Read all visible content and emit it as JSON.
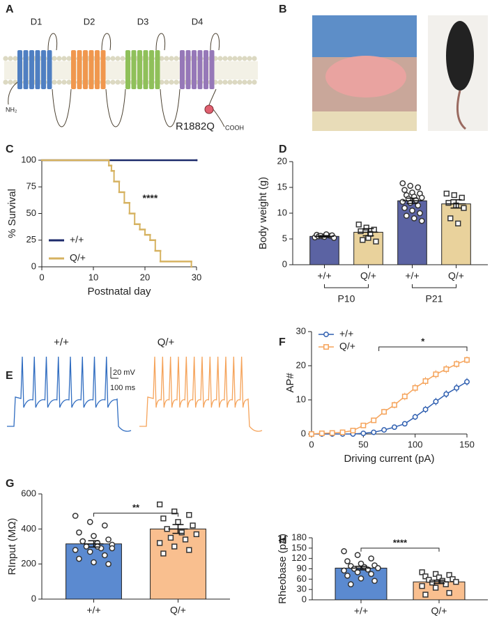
{
  "panel_a": {
    "panel": "A",
    "domains": [
      "D1",
      "D2",
      "D3",
      "D4"
    ],
    "n_terminus": "NH₂",
    "mutation": "R1882Q",
    "c_terminus": "COOH"
  },
  "panel_b": {
    "panel": "B"
  },
  "panel_e": {
    "panel": "E",
    "traces": [
      "+/+",
      "Q/+"
    ],
    "scale_voltage": "20 mV",
    "scale_time": "100 ms"
  },
  "chart_data": [
    {
      "panel": "C",
      "type": "line",
      "step": true,
      "xlabel": "Postnatal day",
      "ylabel": "% Survival",
      "xlim": [
        0,
        30
      ],
      "xticks": [
        0,
        10,
        20,
        30
      ],
      "ylim": [
        0,
        100
      ],
      "yticks": [
        0,
        25,
        50,
        75,
        100
      ],
      "legend": "lower left",
      "annotation": {
        "text": "****",
        "x": 21,
        "y": 64
      },
      "series": [
        {
          "name": "+/+",
          "color": "#1c2a6b",
          "x": [
            0,
            30
          ],
          "values": [
            100,
            100
          ]
        },
        {
          "name": "Q/+",
          "color": "#d6b260",
          "x": [
            0,
            13,
            13.5,
            14,
            15,
            16,
            17,
            18,
            19,
            20,
            21,
            22,
            23,
            29
          ],
          "values": [
            100,
            95,
            90,
            80,
            70,
            60,
            50,
            40,
            35,
            30,
            25,
            15,
            5,
            0
          ]
        }
      ]
    },
    {
      "panel": "D",
      "type": "bar",
      "ylabel": "Body weight (g)",
      "categories": [
        "+/+",
        "Q/+",
        "+/+",
        "Q/+"
      ],
      "groups": [
        "P10",
        "P21"
      ],
      "values": [
        5.5,
        6.3,
        12.4,
        11.8
      ],
      "errors": [
        0.15,
        0.7,
        0.5,
        0.8
      ],
      "colors": [
        "#5b63a3",
        "#e9d29c",
        "#5b63a3",
        "#e9d29c"
      ],
      "markers": [
        "circle",
        "square",
        "circle",
        "square"
      ],
      "points": [
        [
          5.3,
          5.5,
          5.6,
          5.8,
          5.4,
          5.7,
          5.5,
          5.9,
          5.2,
          5.6
        ],
        [
          7.8,
          7.2,
          6.8,
          6.5,
          5.2,
          4.5,
          4.8,
          6.0
        ],
        [
          15.8,
          15.3,
          15,
          14.5,
          14,
          13.8,
          13.5,
          13.2,
          13,
          12.8,
          12.5,
          12.2,
          12,
          11.5,
          11,
          10.5,
          10,
          9.5,
          9,
          8.5
        ],
        [
          13.8,
          13.5,
          13,
          12,
          11.5,
          11,
          9,
          8
        ]
      ],
      "ylim": [
        0,
        20
      ],
      "yticks": [
        0,
        5,
        10,
        15,
        20
      ]
    },
    {
      "panel": "F",
      "type": "line",
      "xlabel": "Driving current (pA)",
      "ylabel": "AP#",
      "x": [
        0,
        10,
        20,
        30,
        40,
        50,
        60,
        70,
        80,
        90,
        100,
        110,
        120,
        130,
        140,
        150
      ],
      "xlim": [
        0,
        150
      ],
      "xticks": [
        0,
        50,
        100,
        150
      ],
      "ylim": [
        0,
        30
      ],
      "yticks": [
        0,
        10,
        20,
        30
      ],
      "legend": "upper left",
      "annotation": {
        "text": "*",
        "x": [
          65,
          150
        ],
        "y": 25.5
      },
      "series": [
        {
          "name": "+/+",
          "color": "#2f5fb0",
          "marker": "circle",
          "values": [
            0,
            0,
            0,
            0,
            0,
            0.2,
            0.5,
            1.2,
            2,
            3,
            5,
            7.2,
            9.5,
            11.7,
            13.5,
            15.3
          ],
          "errors": [
            0,
            0,
            0,
            0,
            0,
            0.1,
            0.2,
            0.4,
            0.6,
            0.7,
            0.9,
            1,
            1.1,
            1.1,
            1.2,
            1.1
          ]
        },
        {
          "name": "Q/+",
          "color": "#f5a35a",
          "marker": "square",
          "values": [
            0,
            0.2,
            0.3,
            0.5,
            1,
            2.5,
            4,
            6.5,
            8.5,
            11,
            13.5,
            15.5,
            17.5,
            19,
            20.5,
            21.7
          ],
          "errors": [
            0,
            0.1,
            0.1,
            0.2,
            0.3,
            0.5,
            0.7,
            0.9,
            1,
            1.1,
            1.2,
            1.2,
            1.2,
            1.2,
            1.1,
            1
          ]
        }
      ]
    },
    {
      "panel": "G",
      "type": "bar",
      "ylabel": "RInput (MΩ)",
      "categories": [
        "+/+",
        "Q/+"
      ],
      "values": [
        315,
        400
      ],
      "errors": [
        18,
        25
      ],
      "colors": [
        "#5b8ad0",
        "#f9bf8f"
      ],
      "markers": [
        "circle",
        "square"
      ],
      "points": [
        [
          475,
          440,
          420,
          380,
          360,
          340,
          330,
          320,
          310,
          300,
          290,
          280,
          270,
          250,
          230,
          210,
          200,
          330,
          300,
          290
        ],
        [
          540,
          500,
          480,
          460,
          440,
          420,
          400,
          380,
          370,
          350,
          340,
          320,
          300,
          280,
          260
        ]
      ],
      "ylim": [
        0,
        600
      ],
      "yticks": [
        0,
        200,
        400,
        600
      ],
      "annotation": {
        "text": "**",
        "y": 490
      }
    },
    {
      "panel": "H",
      "type": "bar",
      "ylabel": "Rheobase (pA)",
      "categories": [
        "+/+",
        "Q/+"
      ],
      "values": [
        92,
        52
      ],
      "errors": [
        5,
        5
      ],
      "colors": [
        "#5b8ad0",
        "#f9bf8f"
      ],
      "markers": [
        "circle",
        "square"
      ],
      "points": [
        [
          141,
          130,
          120,
          112,
          105,
          100,
          98,
          95,
          92,
          90,
          88,
          85,
          80,
          75,
          70,
          62,
          55,
          45
        ],
        [
          80,
          75,
          72,
          68,
          65,
          60,
          58,
          55,
          52,
          50,
          45,
          40,
          35,
          20,
          15
        ]
      ],
      "ylim": [
        0,
        180
      ],
      "yticks": [
        0,
        30,
        60,
        90,
        120,
        150,
        180
      ],
      "annotation": {
        "text": "****",
        "y": 150
      }
    }
  ]
}
